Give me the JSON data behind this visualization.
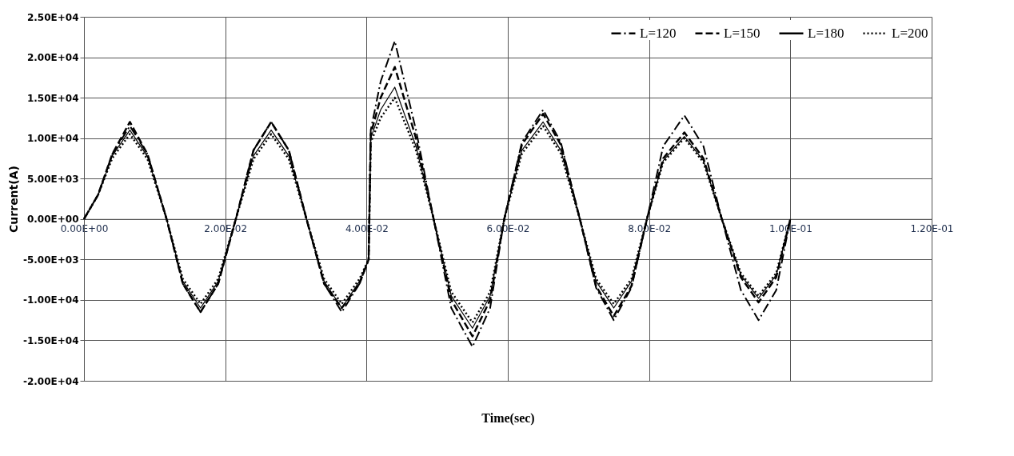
{
  "chart_data": {
    "type": "line",
    "xlabel": "Time(sec)",
    "ylabel": "Current(A)",
    "x": [
      0,
      0.002,
      0.004,
      0.0065,
      0.009,
      0.0117,
      0.014,
      0.0165,
      0.019,
      0.0215,
      0.024,
      0.0265,
      0.029,
      0.0315,
      0.034,
      0.0365,
      0.039,
      0.0403,
      0.0406,
      0.042,
      0.044,
      0.047,
      0.0495,
      0.052,
      0.055,
      0.0575,
      0.0595,
      0.062,
      0.065,
      0.0675,
      0.0702,
      0.0725,
      0.075,
      0.0775,
      0.0797,
      0.082,
      0.085,
      0.0877,
      0.0903,
      0.093,
      0.0955,
      0.098,
      0.1
    ],
    "series": [
      {
        "name": "L=120",
        "color": "#000000",
        "line_style": "dashdot",
        "values": [
          0,
          3000,
          8000,
          11500,
          8000,
          0,
          -8000,
          -11500,
          -8000,
          0,
          8500,
          12000,
          8500,
          0,
          -8000,
          -11500,
          -8000,
          -5000,
          11000,
          17000,
          22000,
          11000,
          0,
          -11000,
          -15800,
          -11000,
          0,
          9500,
          13500,
          9500,
          0,
          -8500,
          -12500,
          -8500,
          0,
          9000,
          12800,
          9000,
          0,
          -8800,
          -12500,
          -8800,
          0
        ]
      },
      {
        "name": "L=150",
        "color": "#000000",
        "line_style": "dashed",
        "values": [
          0,
          3000,
          8000,
          12000,
          8000,
          0,
          -8000,
          -11500,
          -8000,
          0,
          8500,
          12000,
          8500,
          0,
          -8000,
          -11000,
          -8000,
          -5000,
          10500,
          15000,
          18800,
          10000,
          0,
          -10000,
          -14500,
          -10000,
          0,
          9200,
          13000,
          9200,
          0,
          -8300,
          -12000,
          -8300,
          0,
          7500,
          10700,
          7500,
          0,
          -7200,
          -10300,
          -7200,
          0
        ]
      },
      {
        "name": "L=180",
        "color": "#000000",
        "line_style": "solid",
        "values": [
          0,
          3000,
          7800,
          11000,
          7700,
          0,
          -7700,
          -11000,
          -7700,
          0,
          7800,
          11000,
          7800,
          0,
          -7700,
          -11000,
          -7700,
          -5000,
          10000,
          13500,
          16300,
          9000,
          0,
          -9500,
          -13500,
          -9500,
          0,
          8500,
          12000,
          8500,
          0,
          -7700,
          -11000,
          -7700,
          0,
          7200,
          10200,
          7200,
          0,
          -6900,
          -9800,
          -6900,
          0
        ]
      },
      {
        "name": "L=200",
        "color": "#000000",
        "line_style": "dotted",
        "values": [
          0,
          3000,
          7500,
          10500,
          7400,
          0,
          -7400,
          -10500,
          -7400,
          0,
          7400,
          10500,
          7400,
          0,
          -7400,
          -10500,
          -7400,
          -5000,
          9500,
          12500,
          15000,
          8500,
          0,
          -9000,
          -12800,
          -9000,
          0,
          8100,
          11500,
          8100,
          0,
          -7400,
          -10500,
          -7400,
          0,
          7000,
          10000,
          7000,
          0,
          -6700,
          -9500,
          -6700,
          0
        ]
      }
    ],
    "xlim": [
      0,
      0.12
    ],
    "xticks": [
      {
        "value": 0,
        "label": "0.00E+00"
      },
      {
        "value": 0.02,
        "label": "2.00E-02"
      },
      {
        "value": 0.04,
        "label": "4.00E-02"
      },
      {
        "value": 0.06,
        "label": "6.00E-02"
      },
      {
        "value": 0.08,
        "label": "8.00E-02"
      },
      {
        "value": 0.1,
        "label": "1.00E-01"
      },
      {
        "value": 0.12,
        "label": "1.20E-01"
      }
    ],
    "ylim": [
      -20000,
      25000
    ],
    "yticks": [
      {
        "value": -20000,
        "label": "-2.00E+04"
      },
      {
        "value": -15000,
        "label": "-1.50E+04"
      },
      {
        "value": -10000,
        "label": "-1.00E+04"
      },
      {
        "value": -5000,
        "label": "-5.00E+03"
      },
      {
        "value": 0,
        "label": "0.00E+00"
      },
      {
        "value": 5000,
        "label": "5.00E+03"
      },
      {
        "value": 10000,
        "label": "1.00E+04"
      },
      {
        "value": 15000,
        "label": "1.50E+04"
      },
      {
        "value": 20000,
        "label": "2.00E+04"
      },
      {
        "value": 25000,
        "label": "2.50E+04"
      }
    ],
    "grid": true,
    "legend": "top right",
    "marker": "none"
  }
}
